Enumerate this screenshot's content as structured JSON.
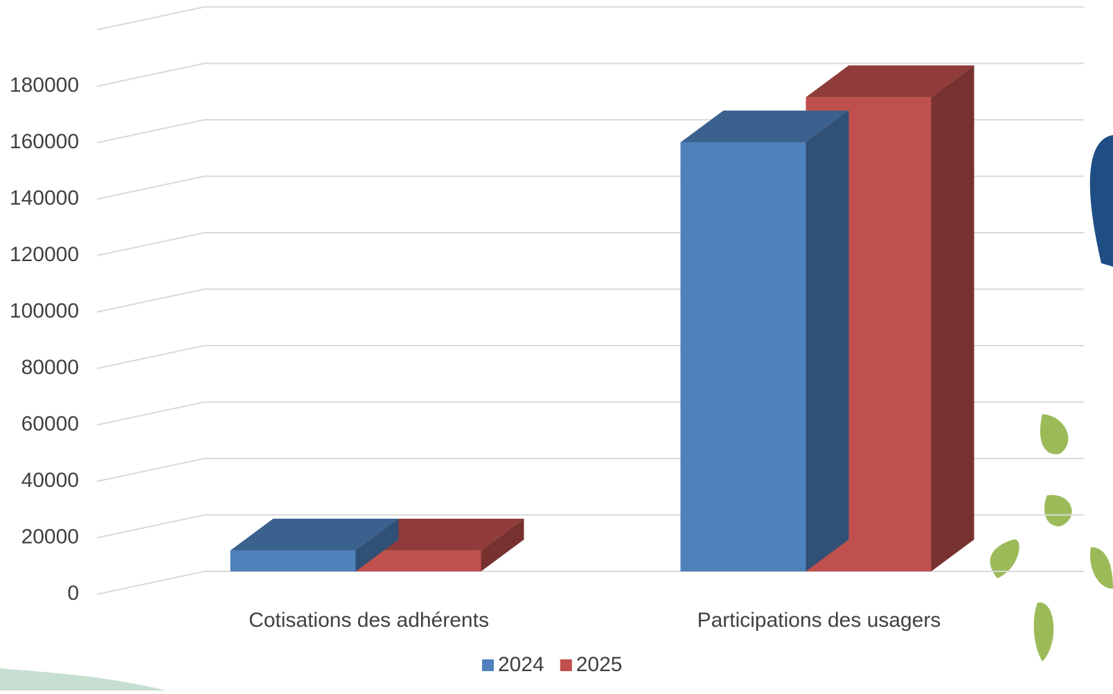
{
  "chart_data": {
    "type": "bar3d",
    "categories": [
      "Cotisations des adhérents",
      "Participations des usagers"
    ],
    "series": [
      {
        "name": "2024",
        "color": "#4f81bd",
        "values": [
          7400,
          152000
        ]
      },
      {
        "name": "2025",
        "color": "#c0504d",
        "values": [
          7400,
          168000
        ]
      }
    ],
    "ylim": [
      0,
      200000
    ],
    "yticks": [
      0,
      20000,
      40000,
      60000,
      80000,
      100000,
      120000,
      140000,
      160000,
      180000
    ],
    "grid": true,
    "legend": "bottom"
  }
}
